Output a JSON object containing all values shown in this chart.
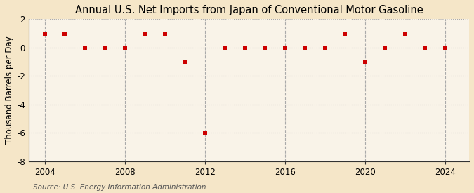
{
  "title": "Annual U.S. Net Imports from Japan of Conventional Motor Gasoline",
  "ylabel": "Thousand Barrels per Day",
  "source": "Source: U.S. Energy Information Administration",
  "bg_outer": "#f5e6c8",
  "bg_plot": "#f9f3e8",
  "years": [
    2004,
    2005,
    2006,
    2007,
    2008,
    2009,
    2010,
    2011,
    2012,
    2013,
    2014,
    2015,
    2016,
    2017,
    2018,
    2019,
    2020,
    2021,
    2022,
    2023,
    2024
  ],
  "values": [
    1,
    1,
    0,
    0,
    0,
    1,
    1,
    -1,
    -6,
    0,
    0,
    0,
    0,
    0,
    0,
    1,
    -1,
    0,
    1,
    0,
    0
  ],
  "marker_color": "#cc0000",
  "marker_size": 25,
  "ylim": [
    -8,
    2
  ],
  "yticks": [
    -8,
    -6,
    -4,
    -2,
    0,
    2
  ],
  "xlim": [
    2003.2,
    2025.2
  ],
  "xticks": [
    2004,
    2008,
    2012,
    2016,
    2020,
    2024
  ],
  "hgrid_color": "#aaaaaa",
  "hgrid_style": ":",
  "vgrid_color": "#aaaaaa",
  "vgrid_style": "--",
  "spine_color": "#333333",
  "title_fontsize": 10.5,
  "label_fontsize": 8.5,
  "tick_fontsize": 8.5,
  "source_fontsize": 7.5
}
